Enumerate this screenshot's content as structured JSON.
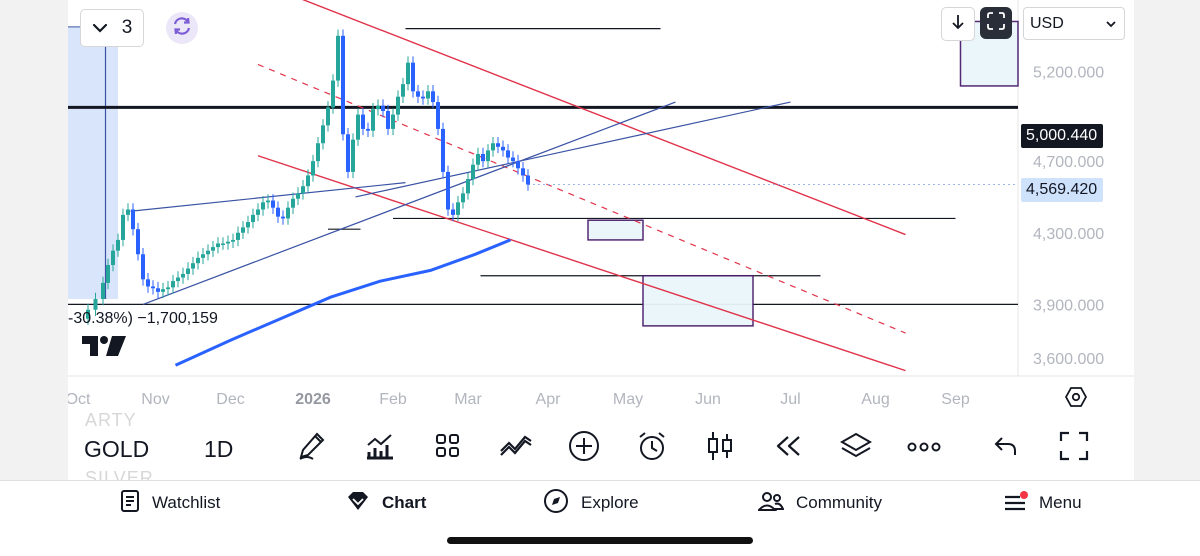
{
  "chart_data": {
    "type": "candlestick",
    "symbol": "GOLD",
    "interval": "1D",
    "currency": "USD",
    "x_ticks": [
      "Oct",
      "Nov",
      "Dec",
      "2026",
      "Feb",
      "Mar",
      "Apr",
      "May",
      "Jun",
      "Jul",
      "Aug",
      "Sep"
    ],
    "y_ticks": [
      "5,200.000",
      "4,700.000",
      "4,300.000",
      "3,900.000",
      "3,600.000"
    ],
    "y_tick_values": [
      5200,
      4700,
      4300,
      3900,
      3600
    ],
    "reference_line": {
      "label": "5,000.440",
      "value": 5000.44
    },
    "last_price": {
      "label": "4,569.420",
      "value": 4569.42
    },
    "price_path": [
      [
        0,
        3820
      ],
      [
        3,
        3870
      ],
      [
        6,
        3930
      ],
      [
        9,
        4020
      ],
      [
        11,
        4120
      ],
      [
        13,
        4200
      ],
      [
        15,
        4260
      ],
      [
        17,
        4400
      ],
      [
        19,
        4430
      ],
      [
        21,
        4320
      ],
      [
        23,
        4180
      ],
      [
        25,
        4040
      ],
      [
        27,
        4000
      ],
      [
        29,
        3990
      ],
      [
        31,
        3970
      ],
      [
        33,
        3985
      ],
      [
        35,
        3995
      ],
      [
        37,
        4030
      ],
      [
        39,
        4050
      ],
      [
        41,
        4070
      ],
      [
        43,
        4100
      ],
      [
        45,
        4130
      ],
      [
        47,
        4160
      ],
      [
        49,
        4180
      ],
      [
        51,
        4200
      ],
      [
        53,
        4220
      ],
      [
        55,
        4240
      ],
      [
        57,
        4240
      ],
      [
        59,
        4250
      ],
      [
        61,
        4260
      ],
      [
        63,
        4300
      ],
      [
        65,
        4330
      ],
      [
        67,
        4360
      ],
      [
        69,
        4400
      ],
      [
        71,
        4430
      ],
      [
        73,
        4470
      ],
      [
        75,
        4480
      ],
      [
        77,
        4440
      ],
      [
        79,
        4390
      ],
      [
        81,
        4380
      ],
      [
        83,
        4440
      ],
      [
        85,
        4490
      ],
      [
        87,
        4520
      ],
      [
        89,
        4560
      ],
      [
        91,
        4620
      ],
      [
        93,
        4700
      ],
      [
        95,
        4800
      ],
      [
        97,
        4900
      ],
      [
        99,
        5000
      ],
      [
        101,
        5150
      ],
      [
        103,
        5400
      ],
      [
        105,
        4850
      ],
      [
        107,
        4640
      ],
      [
        109,
        4820
      ],
      [
        111,
        4960
      ],
      [
        113,
        4880
      ],
      [
        115,
        4870
      ],
      [
        117,
        4990
      ],
      [
        119,
        5010
      ],
      [
        121,
        4980
      ],
      [
        123,
        4880
      ],
      [
        125,
        4960
      ],
      [
        127,
        5060
      ],
      [
        129,
        5130
      ],
      [
        131,
        5250
      ],
      [
        133,
        5090
      ],
      [
        135,
        5060
      ],
      [
        137,
        5050
      ],
      [
        139,
        5090
      ],
      [
        141,
        5030
      ],
      [
        143,
        4880
      ],
      [
        145,
        4640
      ],
      [
        147,
        4430
      ],
      [
        149,
        4400
      ],
      [
        151,
        4470
      ],
      [
        153,
        4520
      ],
      [
        155,
        4600
      ],
      [
        157,
        4680
      ],
      [
        159,
        4740
      ],
      [
        161,
        4700
      ],
      [
        163,
        4760
      ],
      [
        165,
        4800
      ],
      [
        167,
        4780
      ],
      [
        169,
        4760
      ],
      [
        171,
        4720
      ],
      [
        173,
        4700
      ],
      [
        175,
        4660
      ],
      [
        177,
        4620
      ],
      [
        179,
        4569.42
      ]
    ],
    "moving_average": {
      "color": "#2962ff",
      "points": [
        [
          38,
          3560
        ],
        [
          60,
          3700
        ],
        [
          80,
          3820
        ],
        [
          100,
          3940
        ],
        [
          120,
          4030
        ],
        [
          140,
          4090
        ],
        [
          158,
          4180
        ],
        [
          172,
          4260
        ]
      ]
    },
    "ranges": {
      "x": [
        -5,
        375
      ],
      "y": [
        3500,
        5600
      ]
    },
    "colors": {
      "up": "#26a69a",
      "down": "#2962ff",
      "channel": "#e0334a",
      "trendline": "#3a53a4"
    }
  },
  "top_controls": {
    "layout_count": "3",
    "currency": "USD"
  },
  "change_text": "-30.38%) −1,700,159",
  "toolbar": {
    "ghost_top": "ARTY",
    "symbol": "GOLD",
    "ghost_bottom": "SILVER",
    "interval": "1D",
    "tools": [
      "pen-icon",
      "indicators-icon",
      "grid-icon",
      "compare-icon",
      "add-icon",
      "alarm-icon",
      "candles-icon",
      "replay-icon",
      "layers-icon",
      "more-icon",
      "undo-icon",
      "fullscreen-icon"
    ]
  },
  "nav": {
    "watchlist": "Watchlist",
    "chart": "Chart",
    "explore": "Explore",
    "community": "Community",
    "menu": "Menu",
    "menu_badge_color": "#f23645"
  }
}
